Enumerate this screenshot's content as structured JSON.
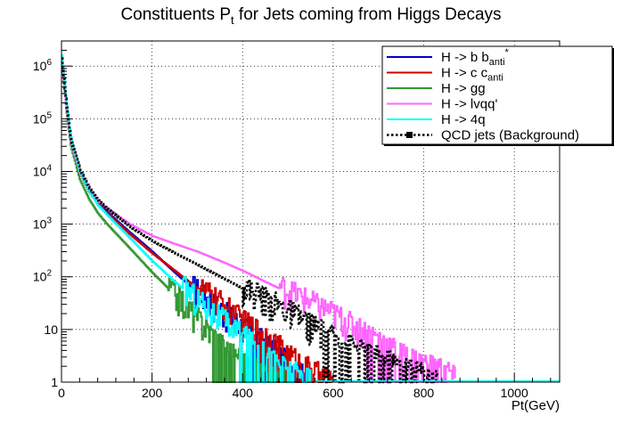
{
  "chart_data": {
    "type": "line",
    "title_main": "Constituents P",
    "title_sub": "t",
    "title_rest": " for Jets coming from Higgs Decays",
    "xlabel": "Pt(GeV)",
    "ylabel": "",
    "xlim": [
      0,
      1100
    ],
    "ylim": [
      1,
      3000000
    ],
    "yscale": "log",
    "grid": true,
    "legend_position": "top-right",
    "x_ticks": [
      0,
      200,
      400,
      600,
      800,
      1000
    ],
    "x_tick_labels": [
      "0",
      "200",
      "400",
      "600",
      "800",
      "1000"
    ],
    "y_ticks": [
      1,
      10,
      100,
      1000,
      10000,
      100000,
      1000000
    ],
    "y_tick_labels": [
      {
        "base": "1",
        "exp": ""
      },
      {
        "base": "10",
        "exp": ""
      },
      {
        "base": "10",
        "exp": "2"
      },
      {
        "base": "10",
        "exp": "3"
      },
      {
        "base": "10",
        "exp": "4"
      },
      {
        "base": "10",
        "exp": "5"
      },
      {
        "base": "10",
        "exp": "6"
      }
    ],
    "series": [
      {
        "name": "H -> b b",
        "sub": "anti",
        "sup": "*",
        "color": "#0000cc",
        "style": "solid",
        "x": [
          0,
          10,
          20,
          40,
          60,
          80,
          100,
          150,
          200,
          250,
          300,
          350,
          400,
          450,
          500,
          520,
          540
        ],
        "y": [
          1500000,
          200000,
          40000,
          10000,
          4500,
          2500,
          1700,
          700,
          300,
          120,
          50,
          22,
          10,
          5,
          2,
          1.5,
          1
        ]
      },
      {
        "name": "H -> c c",
        "sub": "anti",
        "sup": "",
        "color": "#cc0000",
        "style": "solid",
        "x": [
          0,
          10,
          20,
          40,
          60,
          80,
          100,
          150,
          200,
          250,
          300,
          350,
          400,
          450,
          500,
          550,
          600
        ],
        "y": [
          1400000,
          180000,
          38000,
          9500,
          4200,
          2400,
          1600,
          650,
          280,
          130,
          60,
          30,
          13,
          7,
          3,
          1.5,
          1
        ]
      },
      {
        "name": "H -> gg",
        "sub": "",
        "sup": "",
        "color": "#339933",
        "style": "solid",
        "x": [
          0,
          10,
          20,
          40,
          60,
          80,
          100,
          150,
          200,
          250,
          300,
          350,
          400,
          450,
          500
        ],
        "y": [
          1200000,
          150000,
          30000,
          7000,
          3000,
          1600,
          1000,
          350,
          120,
          45,
          15,
          5,
          2,
          1.2,
          1
        ]
      },
      {
        "name": "H -> lvqq'",
        "sub": "",
        "sup": "",
        "color": "#ff66ff",
        "style": "solid",
        "x": [
          0,
          10,
          20,
          40,
          60,
          80,
          100,
          150,
          200,
          250,
          300,
          350,
          400,
          450,
          500,
          550,
          600,
          650,
          700,
          750,
          800,
          850,
          870
        ],
        "y": [
          1300000,
          170000,
          36000,
          9500,
          4600,
          2800,
          2000,
          1000,
          600,
          420,
          300,
          200,
          130,
          80,
          50,
          30,
          18,
          10,
          6,
          3,
          2,
          1.5,
          1
        ]
      },
      {
        "name": "H -> 4q",
        "sub": "",
        "sup": "",
        "color": "#00ffff",
        "style": "solid",
        "x": [
          0,
          10,
          20,
          40,
          60,
          80,
          100,
          150,
          200,
          250,
          300,
          350,
          400,
          450,
          500,
          550
        ],
        "y": [
          1600000,
          220000,
          45000,
          10000,
          4300,
          2300,
          1500,
          550,
          200,
          80,
          35,
          15,
          7,
          3,
          1.5,
          1
        ]
      },
      {
        "name": "QCD jets (Background)",
        "sub": "",
        "sup": "",
        "color": "#000000",
        "style": "dotted",
        "x": [
          0,
          10,
          20,
          40,
          60,
          80,
          100,
          150,
          200,
          250,
          300,
          350,
          400,
          450,
          500,
          550,
          600,
          650,
          700,
          750,
          800,
          830
        ],
        "y": [
          1400000,
          190000,
          40000,
          11000,
          5000,
          2900,
          2000,
          900,
          480,
          280,
          170,
          100,
          60,
          35,
          20,
          11,
          6,
          4,
          2.5,
          1.8,
          1.3,
          1
        ]
      }
    ]
  }
}
